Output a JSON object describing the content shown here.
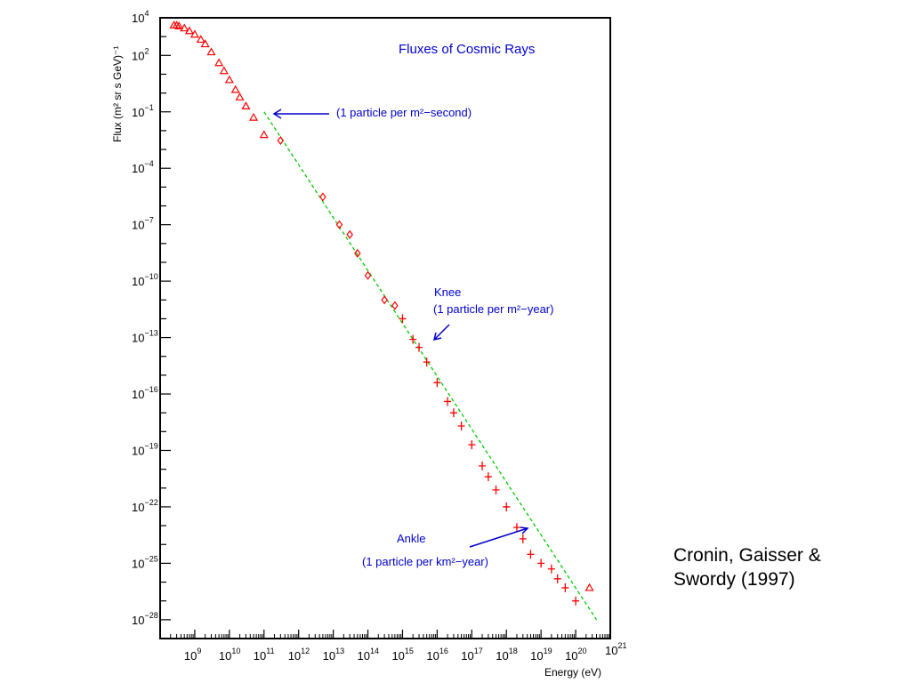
{
  "chart_data": {
    "type": "scatter",
    "title": "Fluxes of Cosmic Rays",
    "xlabel": "Energy (eV)",
    "ylabel": "Flux (m² sr s GeV)⁻¹",
    "x_scale": "log",
    "y_scale": "log",
    "xlim": [
      100000000.0,
      1e+21
    ],
    "ylim": [
      1e-29,
      10000.0
    ],
    "grid": false,
    "x_ticks": [
      {
        "base": "10",
        "exp": "9",
        "value": 1000000000.0
      },
      {
        "base": "10",
        "exp": "10",
        "value": 10000000000.0
      },
      {
        "base": "10",
        "exp": "11",
        "value": 100000000000.0
      },
      {
        "base": "10",
        "exp": "12",
        "value": 1000000000000.0
      },
      {
        "base": "10",
        "exp": "13",
        "value": 10000000000000.0
      },
      {
        "base": "10",
        "exp": "14",
        "value": 100000000000000.0
      },
      {
        "base": "10",
        "exp": "15",
        "value": 1000000000000000.0
      },
      {
        "base": "10",
        "exp": "16",
        "value": 1e+16
      },
      {
        "base": "10",
        "exp": "17",
        "value": 1e+17
      },
      {
        "base": "10",
        "exp": "18",
        "value": 1e+18
      },
      {
        "base": "10",
        "exp": "19",
        "value": 1e+19
      },
      {
        "base": "10",
        "exp": "20",
        "value": 1e+20
      },
      {
        "base": "10",
        "exp": "21",
        "value": 1e+21
      }
    ],
    "y_ticks": [
      {
        "base": "10",
        "exp": "4",
        "value": 10000.0
      },
      {
        "base": "10",
        "exp": "2",
        "value": 100.0
      },
      {
        "base": "10",
        "exp": "−1",
        "value": 0.1
      },
      {
        "base": "10",
        "exp": "−4",
        "value": 0.0001
      },
      {
        "base": "10",
        "exp": "−7",
        "value": 1e-07
      },
      {
        "base": "10",
        "exp": "−10",
        "value": 1e-10
      },
      {
        "base": "10",
        "exp": "−13",
        "value": 1e-13
      },
      {
        "base": "10",
        "exp": "−16",
        "value": 1e-16
      },
      {
        "base": "10",
        "exp": "−19",
        "value": 1e-19
      },
      {
        "base": "10",
        "exp": "−22",
        "value": 1e-22
      },
      {
        "base": "10",
        "exp": "−25",
        "value": 1e-25
      },
      {
        "base": "10",
        "exp": "−28",
        "value": 1e-28
      }
    ],
    "series": [
      {
        "marker": "triangle",
        "color": "#ff0000",
        "points": [
          {
            "x": 250000000.0,
            "y": 4000
          },
          {
            "x": 300000000.0,
            "y": 4000
          },
          {
            "x": 350000000.0,
            "y": 3600
          },
          {
            "x": 500000000.0,
            "y": 2800
          },
          {
            "x": 700000000.0,
            "y": 2000
          },
          {
            "x": 1000000000.0,
            "y": 1300
          },
          {
            "x": 1500000000.0,
            "y": 700
          },
          {
            "x": 2000000000.0,
            "y": 400
          },
          {
            "x": 3000000000.0,
            "y": 150
          },
          {
            "x": 5000000000.0,
            "y": 40
          },
          {
            "x": 7000000000.0,
            "y": 15
          },
          {
            "x": 10000000000.0,
            "y": 5
          },
          {
            "x": 15000000000.0,
            "y": 1.5
          },
          {
            "x": 20000000000.0,
            "y": 0.6
          },
          {
            "x": 30000000000.0,
            "y": 0.2
          },
          {
            "x": 50000000000.0,
            "y": 0.05
          },
          {
            "x": 100000000000.0,
            "y": 0.006
          },
          {
            "x": 2.5e+20,
            "y": 5e-27
          }
        ]
      },
      {
        "marker": "diamond",
        "color": "#ff0000",
        "points": [
          {
            "x": 300000000000.0,
            "y": 0.003
          },
          {
            "x": 5000000000000.0,
            "y": 3e-06
          },
          {
            "x": 15000000000000.0,
            "y": 1e-07
          },
          {
            "x": 30000000000000.0,
            "y": 3e-08
          },
          {
            "x": 50000000000000.0,
            "y": 3e-09
          },
          {
            "x": 100000000000000.0,
            "y": 2e-10
          },
          {
            "x": 300000000000000.0,
            "y": 1e-11
          },
          {
            "x": 600000000000000.0,
            "y": 5e-12
          }
        ]
      },
      {
        "marker": "cross",
        "color": "#ff0000",
        "points": [
          {
            "x": 1000000000000000.0,
            "y": 1e-12
          },
          {
            "x": 2000000000000000.0,
            "y": 8e-14
          },
          {
            "x": 3000000000000000.0,
            "y": 3e-14
          },
          {
            "x": 5000000000000000.0,
            "y": 5e-15
          },
          {
            "x": 1e+16,
            "y": 4e-16
          },
          {
            "x": 2e+16,
            "y": 4e-17
          },
          {
            "x": 3e+16,
            "y": 1e-17
          },
          {
            "x": 5e+16,
            "y": 2e-18
          },
          {
            "x": 1e+17,
            "y": 2e-19
          },
          {
            "x": 2e+17,
            "y": 1.5e-20
          },
          {
            "x": 3e+17,
            "y": 4e-21
          },
          {
            "x": 5e+17,
            "y": 8e-22
          },
          {
            "x": 1e+18,
            "y": 1e-22
          },
          {
            "x": 2e+18,
            "y": 8e-24
          },
          {
            "x": 3e+18,
            "y": 2e-24
          },
          {
            "x": 5e+18,
            "y": 3e-25
          },
          {
            "x": 1e+19,
            "y": 1e-25
          },
          {
            "x": 2e+19,
            "y": 5e-26
          },
          {
            "x": 3e+19,
            "y": 1.5e-26
          },
          {
            "x": 5e+19,
            "y": 5e-27
          },
          {
            "x": 1e+20,
            "y": 1e-27
          }
        ]
      }
    ],
    "reference_line": {
      "color": "#00cc00",
      "style": "dashed",
      "x": [
        100000000000.0,
        4e+20
      ],
      "y": [
        0.1,
        1e-28
      ]
    },
    "annotations": [
      {
        "text": "(1 particle per m²−second)",
        "arrow": true
      },
      {
        "text": "Knee",
        "arrow": false
      },
      {
        "text": "(1 particle per m²−year)",
        "arrow": true
      },
      {
        "text": "Ankle",
        "arrow": true
      },
      {
        "text": "(1 particle per km²−year)",
        "arrow": false
      }
    ]
  },
  "citation": {
    "line1": "Cronin, Gaisser &",
    "line2": "Swordy (1997)"
  }
}
